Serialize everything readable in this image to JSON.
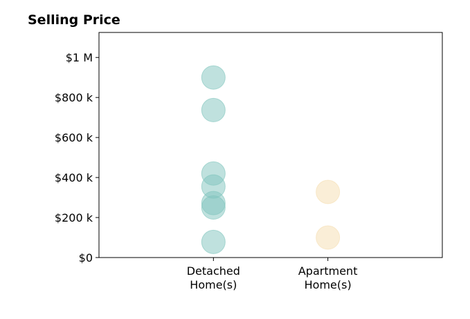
{
  "chart_data": {
    "type": "scatter",
    "title": "Selling Price",
    "xlabel": "",
    "ylabel": "",
    "categories": [
      "Detached\nHome(s)",
      "Apartment\nHome(s)"
    ],
    "y_ticks": [
      {
        "value": 0,
        "label": "$0"
      },
      {
        "value": 200000,
        "label": "$200 k"
      },
      {
        "value": 400000,
        "label": "$400 k"
      },
      {
        "value": 600000,
        "label": "$600 k"
      },
      {
        "value": 800000,
        "label": "$800 k"
      },
      {
        "value": 1000000,
        "label": "$1 M"
      }
    ],
    "ylim": [
      0,
      1125000
    ],
    "xlim": [
      -1,
      2
    ],
    "grid": false,
    "series": [
      {
        "category": "Detached\nHome(s)",
        "color": "#7fc4bd",
        "values": [
          900000,
          737000,
          420000,
          355000,
          272000,
          250000,
          78000
        ]
      },
      {
        "category": "Apartment\nHome(s)",
        "color": "#f5deb0",
        "values": [
          328000,
          100000
        ]
      }
    ]
  }
}
